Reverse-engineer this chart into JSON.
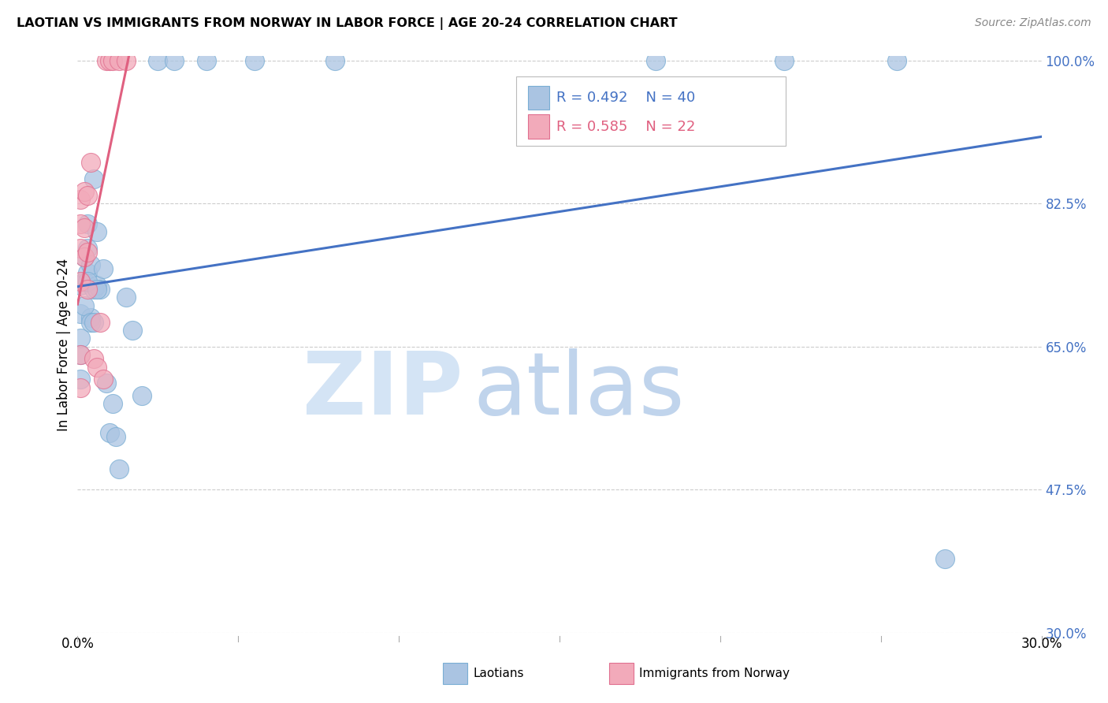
{
  "title": "LAOTIAN VS IMMIGRANTS FROM NORWAY IN LABOR FORCE | AGE 20-24 CORRELATION CHART",
  "source": "Source: ZipAtlas.com",
  "ylabel": "In Labor Force | Age 20-24",
  "xmin": 0.0,
  "xmax": 0.3,
  "ymin": 0.3,
  "ymax": 1.005,
  "yticks": [
    0.3,
    0.475,
    0.65,
    0.825,
    1.0
  ],
  "ytick_labels": [
    "30.0%",
    "47.5%",
    "65.0%",
    "82.5%",
    "100.0%"
  ],
  "blue_R": 0.492,
  "blue_N": 40,
  "pink_R": 0.585,
  "pink_N": 22,
  "blue_color": "#aac4e2",
  "pink_color": "#f2aaba",
  "blue_edge_color": "#7aaed4",
  "pink_edge_color": "#e07090",
  "blue_line_color": "#4472c4",
  "pink_line_color": "#e06080",
  "axis_color": "#4472c4",
  "grid_color": "#cccccc",
  "watermark_zip_color": "#d4e4f5",
  "watermark_atlas_color": "#c0d4ec",
  "blue_scatter_x": [
    0.001,
    0.001,
    0.001,
    0.002,
    0.002,
    0.003,
    0.003,
    0.003,
    0.004,
    0.004,
    0.005,
    0.005,
    0.006,
    0.006,
    0.007,
    0.008,
    0.009,
    0.01,
    0.011,
    0.012,
    0.013,
    0.015,
    0.017,
    0.02,
    0.025,
    0.03,
    0.04,
    0.055,
    0.08,
    0.001,
    0.001,
    0.002,
    0.003,
    0.004,
    0.005,
    0.006,
    0.18,
    0.22,
    0.255,
    0.27
  ],
  "blue_scatter_y": [
    0.725,
    0.69,
    0.66,
    0.76,
    0.73,
    0.8,
    0.77,
    0.74,
    0.75,
    0.685,
    0.855,
    0.72,
    0.79,
    0.725,
    0.72,
    0.745,
    0.605,
    0.545,
    0.58,
    0.54,
    0.5,
    0.71,
    0.67,
    0.59,
    1.0,
    1.0,
    1.0,
    1.0,
    1.0,
    0.64,
    0.61,
    0.7,
    0.73,
    0.68,
    0.68,
    0.72,
    1.0,
    1.0,
    1.0,
    0.39
  ],
  "pink_scatter_x": [
    0.001,
    0.001,
    0.001,
    0.001,
    0.001,
    0.001,
    0.002,
    0.002,
    0.002,
    0.003,
    0.003,
    0.003,
    0.004,
    0.005,
    0.006,
    0.007,
    0.008,
    0.009,
    0.01,
    0.011,
    0.013,
    0.015
  ],
  "pink_scatter_y": [
    0.83,
    0.8,
    0.77,
    0.73,
    0.64,
    0.6,
    0.84,
    0.795,
    0.76,
    0.835,
    0.765,
    0.72,
    0.875,
    0.635,
    0.625,
    0.68,
    0.61,
    1.0,
    1.0,
    1.0,
    1.0,
    1.0
  ]
}
